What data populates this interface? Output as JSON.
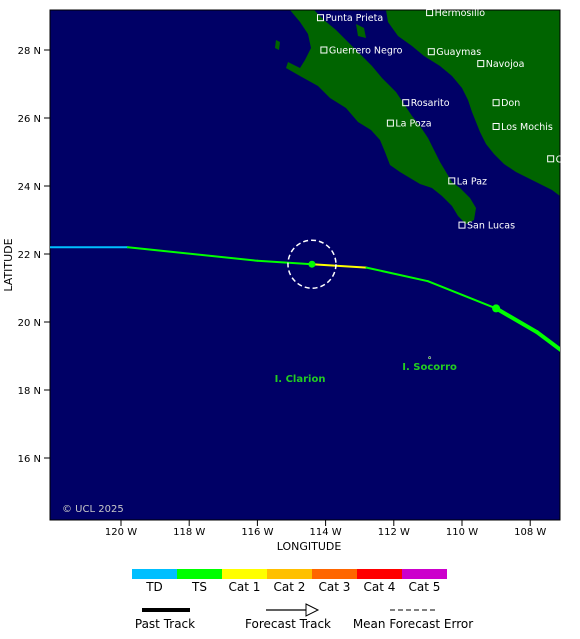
{
  "map": {
    "xlabel": "LONGITUDE",
    "ylabel": "LATITUDE",
    "copyright": "© UCL 2025",
    "lon_ticks": [
      {
        "lon": -120,
        "label": "120 W"
      },
      {
        "lon": -118,
        "label": "118 W"
      },
      {
        "lon": -116,
        "label": "116 W"
      },
      {
        "lon": -114,
        "label": "114 W"
      },
      {
        "lon": -112,
        "label": "112 W"
      },
      {
        "lon": -110,
        "label": "110 W"
      },
      {
        "lon": -108,
        "label": "108 W"
      }
    ],
    "lat_ticks": [
      {
        "lat": 28,
        "label": "28 N"
      },
      {
        "lat": 26,
        "label": "26 N"
      },
      {
        "lat": 24,
        "label": "24 N"
      },
      {
        "lat": 22,
        "label": "22 N"
      },
      {
        "lat": 20,
        "label": "20 N"
      },
      {
        "lat": 18,
        "label": "18 N"
      },
      {
        "lat": 16,
        "label": "16 N"
      }
    ],
    "colors": {
      "ocean": "#000066",
      "land": "#006400",
      "track_td": "#00bfff",
      "track_ts": "#00ff00",
      "track_cat1": "#ffff00"
    },
    "cities": [
      {
        "name": "Punta Prieta",
        "lon": -114.15,
        "lat": 28.95
      },
      {
        "name": "Hermosillo",
        "lon": -110.95,
        "lat": 29.1
      },
      {
        "name": "Guerrero Negro",
        "lon": -114.05,
        "lat": 28.0
      },
      {
        "name": "Guaymas",
        "lon": -110.9,
        "lat": 27.95
      },
      {
        "name": "Navojoa",
        "lon": -109.45,
        "lat": 27.6
      },
      {
        "name": "Rosarito",
        "lon": -111.65,
        "lat": 26.45
      },
      {
        "name": "Don",
        "lon": -109.0,
        "lat": 26.45
      },
      {
        "name": "La Poza",
        "lon": -112.1,
        "lat": 25.85
      },
      {
        "name": "Los Mochis",
        "lon": -109.0,
        "lat": 25.75
      },
      {
        "name": "Culiacan",
        "lon": -107.4,
        "lat": 24.8
      },
      {
        "name": "La Paz",
        "lon": -110.3,
        "lat": 24.15
      },
      {
        "name": "San Lucas",
        "lon": -110.0,
        "lat": 22.85
      }
    ],
    "islands": [
      {
        "name": "I. Clarion",
        "lon": -114.75,
        "lat": 18.35
      },
      {
        "name": "I. Socorro",
        "lon": -110.95,
        "lat": 18.7
      }
    ],
    "track": [
      {
        "lon": -123.0,
        "lat": 22.2,
        "cat": "TD"
      },
      {
        "lon": -119.8,
        "lat": 22.2,
        "cat": "TS"
      },
      {
        "lon": -116.0,
        "lat": 21.8,
        "cat": "TS"
      },
      {
        "lon": -114.4,
        "lat": 21.7,
        "cat": "Cat1"
      },
      {
        "lon": -112.8,
        "lat": 21.6,
        "cat": "TS"
      },
      {
        "lon": -111.0,
        "lat": 21.2,
        "cat": "TS"
      },
      {
        "lon": -109.0,
        "lat": 20.4,
        "cat": "TS"
      },
      {
        "lon": -107.8,
        "lat": 19.7,
        "cat": "TS"
      },
      {
        "lon": -107.0,
        "lat": 19.1,
        "cat": "TS"
      }
    ],
    "past_track_from_index": 6,
    "current_position": {
      "lon": -114.4,
      "lat": 21.7
    },
    "forecast_marker": {
      "lon": -109.0,
      "lat": 20.4
    }
  },
  "legend": {
    "scale": [
      {
        "label": "TD",
        "color": "#00bfff"
      },
      {
        "label": "TS",
        "color": "#00ff00"
      },
      {
        "label": "Cat 1",
        "color": "#ffff00"
      },
      {
        "label": "Cat 2",
        "color": "#ffc000"
      },
      {
        "label": "Cat 3",
        "color": "#ff6600"
      },
      {
        "label": "Cat 4",
        "color": "#ff0000"
      },
      {
        "label": "Cat 5",
        "color": "#cc00cc"
      }
    ],
    "past_track": "Past Track",
    "forecast_track": "Forecast Track",
    "mean_error": "Mean Forecast Error"
  }
}
